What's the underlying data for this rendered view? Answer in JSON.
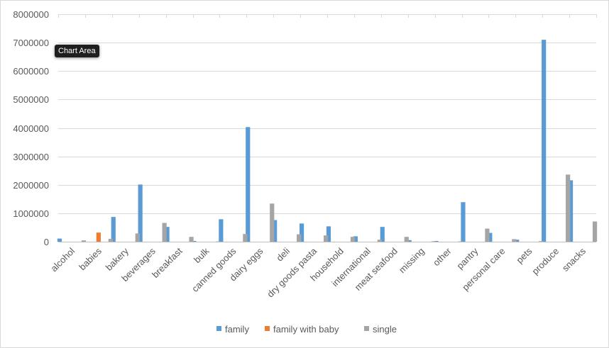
{
  "tooltip": "Chart Area",
  "colors": {
    "grid": "#d9d9d9",
    "axis": "#bfbfbf",
    "text": "#595959"
  },
  "chart_data": {
    "type": "bar",
    "title": "",
    "xlabel": "",
    "ylabel": "",
    "ylim": [
      0,
      8000000
    ],
    "yticks": [
      0,
      1000000,
      2000000,
      3000000,
      4000000,
      5000000,
      6000000,
      7000000,
      8000000
    ],
    "grid": true,
    "legend_position": "bottom",
    "categories": [
      "alcohol",
      "babies",
      "bakery",
      "beverages",
      "breakfast",
      "bulk",
      "canned goods",
      "dairy eggs",
      "deli",
      "dry goods pasta",
      "household",
      "international",
      "meat seafood",
      "missing",
      "other",
      "pantry",
      "personal care",
      "pets",
      "produce",
      "snacks"
    ],
    "series": [
      {
        "name": "family",
        "color": "#5b9bd5",
        "values": [
          110000,
          0,
          870000,
          2010000,
          520000,
          25000,
          790000,
          4030000,
          760000,
          640000,
          540000,
          190000,
          520000,
          55000,
          25000,
          1390000,
          310000,
          70000,
          7100000,
          2160000
        ]
      },
      {
        "name": "family with baby",
        "color": "#ed7d31",
        "values": [
          0,
          320000,
          0,
          0,
          0,
          0,
          0,
          0,
          0,
          0,
          0,
          0,
          0,
          0,
          0,
          0,
          0,
          0,
          0,
          0
        ]
      },
      {
        "name": "single",
        "color": "#a5a5a5",
        "values": [
          45000,
          100000,
          290000,
          660000,
          170000,
          10000,
          270000,
          1340000,
          260000,
          220000,
          170000,
          70000,
          170000,
          15000,
          10000,
          460000,
          90000,
          20000,
          2360000,
          710000
        ]
      }
    ]
  }
}
